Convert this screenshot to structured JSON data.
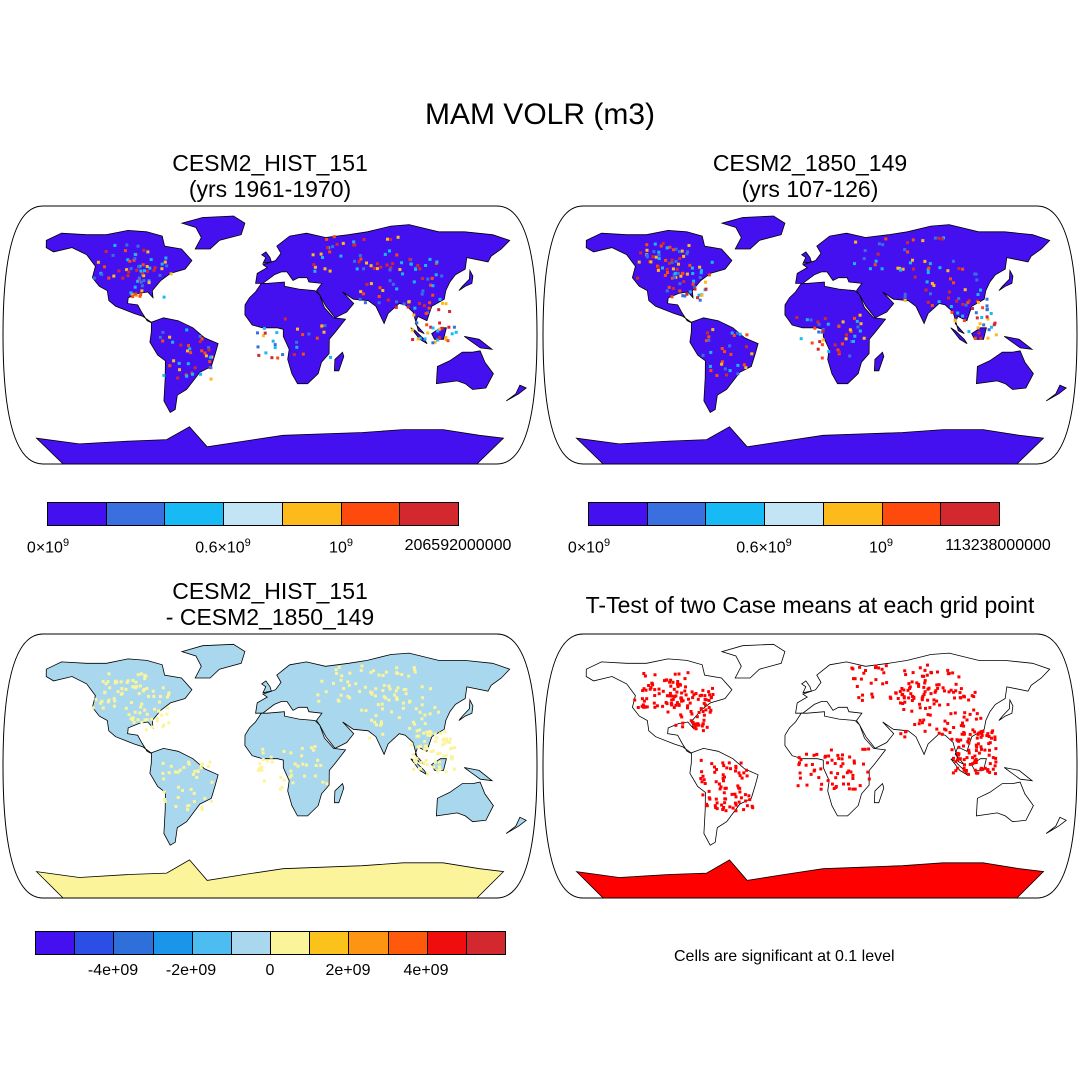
{
  "title": "MAM VOLR (m3)",
  "panels": [
    {
      "id": "hist",
      "title_line1": "CESM2_HIST_151",
      "title_line2": "(yrs 1961-1970)",
      "land_color": "#4510f0",
      "colorbar": {
        "colors": [
          "#4510f0",
          "#3a6fe0",
          "#17baf5",
          "#c2e4f4",
          "#fdbb1b",
          "#ff4a0e",
          "#d2282e"
        ],
        "labels": [
          {
            "base": "0×10",
            "exp": "9"
          },
          {
            "base": "0.6×10",
            "exp": "9"
          },
          {
            "base": "10",
            "exp": "9"
          },
          {
            "base": "206592000000",
            "exp": ""
          }
        ]
      }
    },
    {
      "id": "pi",
      "title_line1": "CESM2_1850_149",
      "title_line2": "(yrs 107-126)",
      "land_color": "#4510f0",
      "colorbar": {
        "colors": [
          "#4510f0",
          "#3a6fe0",
          "#17baf5",
          "#c2e4f4",
          "#fdbb1b",
          "#ff4a0e",
          "#d2282e"
        ],
        "labels": [
          {
            "base": "0×10",
            "exp": "9"
          },
          {
            "base": "0.6×10",
            "exp": "9"
          },
          {
            "base": "10",
            "exp": "9"
          },
          {
            "base": "113238000000",
            "exp": ""
          }
        ]
      }
    },
    {
      "id": "diff",
      "title_line1": "CESM2_HIST_151",
      "title_line2": "- CESM2_1850_149",
      "land_color": "#a9d8ee",
      "alt_color": "#fbf49a",
      "colorbar": {
        "colors": [
          "#4510f0",
          "#2b4fe6",
          "#2e6fd9",
          "#1a95ea",
          "#4dbcf0",
          "#a9d8ee",
          "#fbf49a",
          "#fcc21c",
          "#fd9412",
          "#ff5a0c",
          "#f00d0d",
          "#d2282e"
        ],
        "labels": [
          "-4e+09",
          "-2e+09",
          "0",
          "2e+09",
          "4e+09"
        ]
      }
    },
    {
      "id": "ttest",
      "title_line1": "T-Test of two Case means at each grid point",
      "title_line2": "",
      "signif_color": "#ff0000",
      "note": "Cells are significant at 0.1 level"
    }
  ]
}
